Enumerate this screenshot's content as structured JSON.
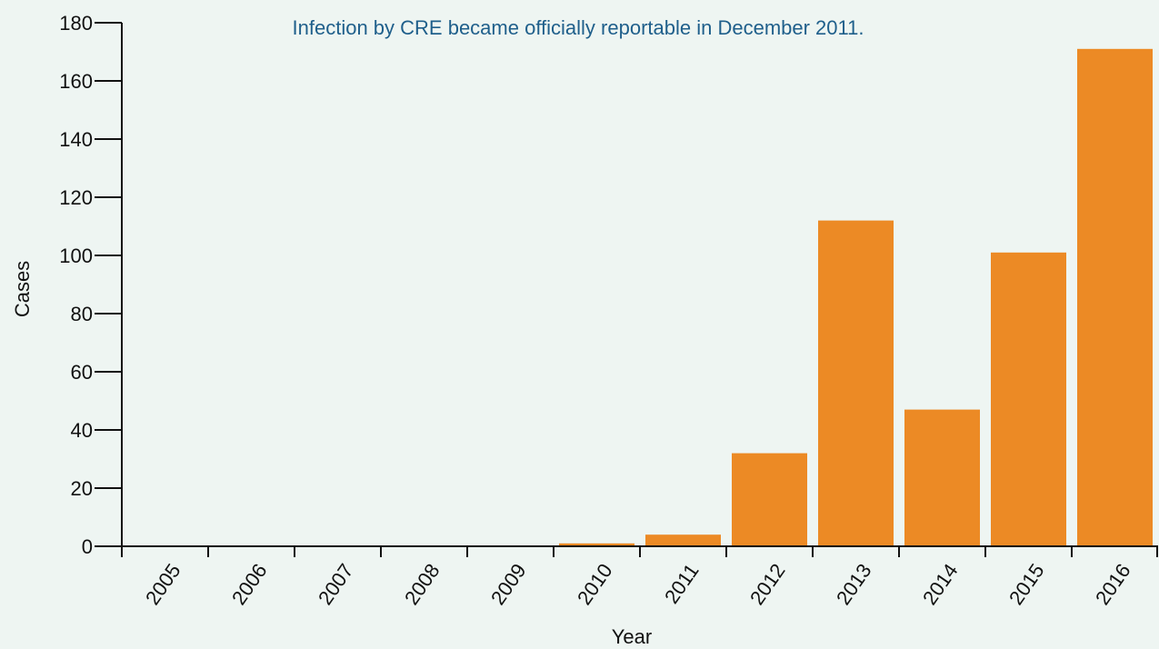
{
  "chart_data": {
    "type": "bar",
    "annotation": "Infection by CRE became officially reportable in December 2011.",
    "xlabel": "Year",
    "ylabel": "Cases",
    "categories": [
      "2005",
      "2006",
      "2007",
      "2008",
      "2009",
      "2010",
      "2011",
      "2012",
      "2013",
      "2014",
      "2015",
      "2016"
    ],
    "values": [
      0,
      0,
      0,
      0,
      0,
      1,
      4,
      32,
      112,
      47,
      101,
      171
    ],
    "ylim": [
      0,
      180
    ],
    "yticks": [
      "0",
      "20",
      "40",
      "60",
      "80",
      "100",
      "120",
      "140",
      "160",
      "180"
    ],
    "grid": false,
    "colors": {
      "bar": "#ec8a25",
      "annotation": "#1f5f8b",
      "axis": "#111111",
      "background": "#eef5f2"
    }
  }
}
